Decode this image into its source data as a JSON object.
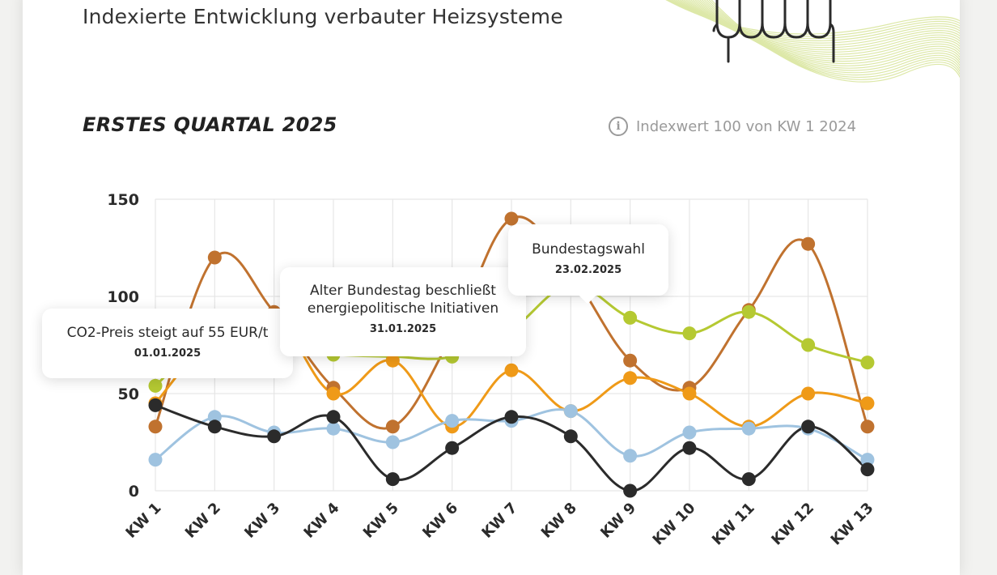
{
  "header": {
    "subtitle": "Indexierte Entwicklung verbauter Heizsysteme"
  },
  "section": {
    "title": "ERSTES QUARTAL 2025",
    "index_note": "Indexwert 100 von KW 1 2024",
    "info_icon": "info-icon"
  },
  "colors": {
    "series_brown": "#c0722f",
    "series_lime": "#b5c932",
    "series_orange": "#ef9a18",
    "series_blue": "#9fc3e0",
    "series_black": "#2b2b2b",
    "deco_lime": "#dde8a8"
  },
  "chart_data": {
    "type": "line",
    "title": "ERSTES QUARTAL 2025",
    "categories": [
      "KW 1",
      "KW 2",
      "KW 3",
      "KW 4",
      "KW 5",
      "KW 6",
      "KW 7",
      "KW 8",
      "KW 9",
      "KW 10",
      "KW 11",
      "KW 12",
      "KW 13"
    ],
    "yticks": [
      "0",
      "50",
      "100",
      "150"
    ],
    "ylim": [
      0,
      150
    ],
    "grid": true,
    "series": [
      {
        "key": "brown",
        "color": "#c0722f",
        "values": [
          33,
          120,
          92,
          53,
          33,
          80,
          140,
          112,
          67,
          53,
          93,
          127,
          33
        ]
      },
      {
        "key": "lime",
        "color": "#b5c932",
        "values": [
          54,
          80,
          72,
          70,
          69,
          69,
          83,
          106,
          89,
          81,
          92,
          75,
          66
        ]
      },
      {
        "key": "orange",
        "color": "#ef9a18",
        "values": [
          45,
          80,
          90,
          50,
          67,
          33,
          62,
          41,
          58,
          50,
          33,
          50,
          45
        ]
      },
      {
        "key": "blue",
        "color": "#9fc3e0",
        "values": [
          16,
          38,
          30,
          32,
          25,
          36,
          36,
          41,
          18,
          30,
          32,
          32,
          16
        ]
      },
      {
        "key": "black",
        "color": "#2b2b2b",
        "values": [
          44,
          33,
          28,
          38,
          6,
          22,
          38,
          28,
          0,
          22,
          6,
          33,
          11
        ]
      }
    ],
    "annotations": [
      {
        "text": "CO2-Preis steigt auf 55 EUR/t",
        "date": "01.01.2025"
      },
      {
        "text": "Alter Bundestag beschließt energiepolitische Initiativen",
        "date": "31.01.2025"
      },
      {
        "text": "Bundestagswahl",
        "date": "23.02.2025"
      }
    ]
  }
}
